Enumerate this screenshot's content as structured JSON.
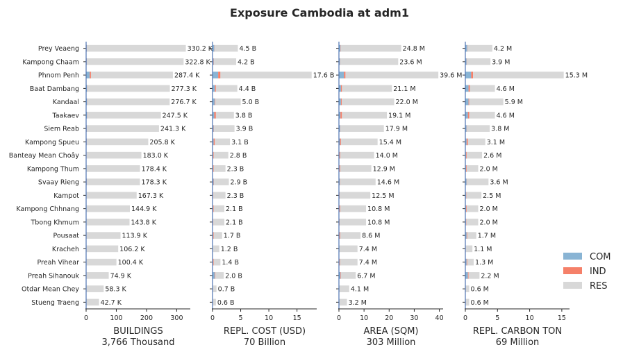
{
  "title": "Exposure Cambodia at adm1",
  "colors": {
    "COM": "#89b4d4",
    "IND": "#f58069",
    "RES": "#d8d8d8",
    "axis": "#4c72b0"
  },
  "legend": {
    "position": "right",
    "items": [
      "COM",
      "IND",
      "RES"
    ]
  },
  "chart_data": [
    {
      "type": "bar",
      "orientation": "horizontal",
      "stacked": true,
      "xlabel": "BUILDINGS",
      "xsublabel": "3,766 Thousand",
      "xlim": [
        0,
        345
      ],
      "xticks": [
        0,
        100,
        200,
        300
      ],
      "categories": [
        "Prey Veaeng",
        "Kampong Chaam",
        "Phnom Penh",
        "Baat Dambang",
        "Kandaal",
        "Taakaev",
        "Siem Reab",
        "Kampong Spueu",
        "Banteay Mean Choây",
        "Kampong Thum",
        "Svaay Rieng",
        "Kampot",
        "Kampong Chhnang",
        "Tbong Khmum",
        "Pousaat",
        "Kracheh",
        "Preah Vihear",
        "Preah Sihanouk",
        "Otdar Mean Chey",
        "Stueng Traeng"
      ],
      "series": [
        {
          "name": "COM",
          "values": [
            2,
            2,
            12,
            3,
            3,
            3,
            2,
            2,
            1,
            1,
            2,
            1,
            1,
            1,
            1,
            0.5,
            1,
            1,
            0.3,
            0.3
          ]
        },
        {
          "name": "IND",
          "values": [
            0.3,
            0.3,
            4,
            0.5,
            0.5,
            0.5,
            0.3,
            0.5,
            0.5,
            0.2,
            0.3,
            0.2,
            0.2,
            0.2,
            0.1,
            0.1,
            0.1,
            0.3,
            0.05,
            0.05
          ]
        },
        {
          "name": "RES",
          "values": [
            327.9,
            320.5,
            271.4,
            273.8,
            273.2,
            244.0,
            239.0,
            203.2,
            181.5,
            177.2,
            176.0,
            166.1,
            143.7,
            142.6,
            112.8,
            105.6,
            99.3,
            73.6,
            57.95,
            42.35
          ]
        }
      ],
      "labels": [
        "330.2 K",
        "322.8 K",
        "287.4 K",
        "277.3 K",
        "276.7 K",
        "247.5 K",
        "241.3 K",
        "205.8 K",
        "183.0 K",
        "178.4 K",
        "178.3 K",
        "167.3 K",
        "144.9 K",
        "143.8 K",
        "113.9 K",
        "106.2 K",
        "100.4 K",
        "74.9 K",
        "58.3 K",
        "42.7 K"
      ]
    },
    {
      "type": "bar",
      "orientation": "horizontal",
      "stacked": true,
      "xlabel": "REPL. COST (USD)",
      "xsublabel": "70 Billion",
      "xlim": [
        0,
        18.5
      ],
      "xticks": [
        0,
        5,
        10,
        15
      ],
      "series": [
        {
          "name": "COM",
          "values": [
            0.3,
            0.2,
            1.0,
            0.4,
            0.4,
            0.3,
            0.2,
            0.2,
            0.1,
            0.1,
            0.2,
            0.1,
            0.1,
            0.1,
            0.1,
            0.05,
            0.1,
            0.4,
            0.02,
            0.02
          ]
        },
        {
          "name": "IND",
          "values": [
            0.05,
            0.05,
            0.4,
            0.2,
            0.1,
            0.3,
            0.05,
            0.2,
            0.1,
            0.1,
            0.05,
            0.05,
            0.1,
            0.05,
            0.1,
            0.02,
            0.1,
            0.1,
            0.02,
            0.02
          ]
        },
        {
          "name": "RES",
          "values": [
            4.15,
            3.95,
            16.2,
            3.8,
            4.5,
            3.2,
            3.65,
            2.7,
            2.6,
            2.1,
            2.65,
            2.15,
            1.9,
            1.95,
            1.5,
            1.13,
            1.2,
            1.5,
            0.66,
            0.56
          ]
        }
      ],
      "labels": [
        "4.5 B",
        "4.2 B",
        "17.6 B",
        "4.4 B",
        "5.0 B",
        "3.8 B",
        "3.9 B",
        "3.1 B",
        "2.8 B",
        "2.3 B",
        "2.9 B",
        "2.3 B",
        "2.1 B",
        "2.1 B",
        "1.7 B",
        "1.2 B",
        "1.4 B",
        "2.0 B",
        "0.7 B",
        "0.6 B"
      ]
    },
    {
      "type": "bar",
      "orientation": "horizontal",
      "stacked": true,
      "xlabel": "AREA (SQM)",
      "xsublabel": "303 Million",
      "xlim": [
        0,
        41.5
      ],
      "xticks": [
        0,
        10,
        20,
        30,
        40
      ],
      "series": [
        {
          "name": "COM",
          "values": [
            0.6,
            0.4,
            2.0,
            0.8,
            0.8,
            0.6,
            0.5,
            0.4,
            0.2,
            0.2,
            0.3,
            0.2,
            0.2,
            0.2,
            0.2,
            0.1,
            0.2,
            0.6,
            0.05,
            0.05
          ]
        },
        {
          "name": "IND",
          "values": [
            0.1,
            0.1,
            0.6,
            0.4,
            0.3,
            0.6,
            0.1,
            0.4,
            0.3,
            0.3,
            0.1,
            0.1,
            0.3,
            0.1,
            0.3,
            0.05,
            0.2,
            0.2,
            0.05,
            0.05
          ]
        },
        {
          "name": "RES",
          "values": [
            24.1,
            23.1,
            37.0,
            19.9,
            20.9,
            17.9,
            17.3,
            14.6,
            13.5,
            12.4,
            14.2,
            12.2,
            10.3,
            10.5,
            8.1,
            7.25,
            7.0,
            5.9,
            4.0,
            3.1
          ]
        }
      ],
      "labels": [
        "24.8 M",
        "23.6 M",
        "39.6 M",
        "21.1 M",
        "22.0 M",
        "19.1 M",
        "17.9 M",
        "15.4 M",
        "14.0 M",
        "12.9 M",
        "14.6 M",
        "12.5 M",
        "10.8 M",
        "10.8 M",
        "8.6 M",
        "7.4 M",
        "7.4 M",
        "6.7 M",
        "4.1 M",
        "3.2 M"
      ]
    },
    {
      "type": "bar",
      "orientation": "horizontal",
      "stacked": true,
      "xlabel": "REPL. CARBON TON",
      "xsublabel": "69 Million",
      "xlim": [
        0,
        16.2
      ],
      "xticks": [
        0,
        5,
        10,
        15
      ],
      "series": [
        {
          "name": "COM",
          "values": [
            0.3,
            0.2,
            0.9,
            0.5,
            0.5,
            0.4,
            0.2,
            0.2,
            0.1,
            0.1,
            0.2,
            0.1,
            0.1,
            0.1,
            0.2,
            0.05,
            0.2,
            0.4,
            0.02,
            0.02
          ]
        },
        {
          "name": "IND",
          "values": [
            0.05,
            0.05,
            0.3,
            0.2,
            0.1,
            0.2,
            0.05,
            0.2,
            0.1,
            0.1,
            0.05,
            0.05,
            0.1,
            0.05,
            0.1,
            0.02,
            0.1,
            0.1,
            0.02,
            0.02
          ]
        },
        {
          "name": "RES",
          "values": [
            3.85,
            3.65,
            14.1,
            3.9,
            5.3,
            4.0,
            3.55,
            2.7,
            2.4,
            1.8,
            3.35,
            2.35,
            1.8,
            1.85,
            1.4,
            1.03,
            1.0,
            1.7,
            0.56,
            0.56
          ]
        }
      ],
      "labels": [
        "4.2 M",
        "3.9 M",
        "15.3 M",
        "4.6 M",
        "5.9 M",
        "4.6 M",
        "3.8 M",
        "3.1 M",
        "2.6 M",
        "2.0 M",
        "3.6 M",
        "2.5 M",
        "2.0 M",
        "2.0 M",
        "1.7 M",
        "1.1 M",
        "1.3 M",
        "2.2 M",
        "0.6 M",
        "0.6 M"
      ]
    }
  ]
}
